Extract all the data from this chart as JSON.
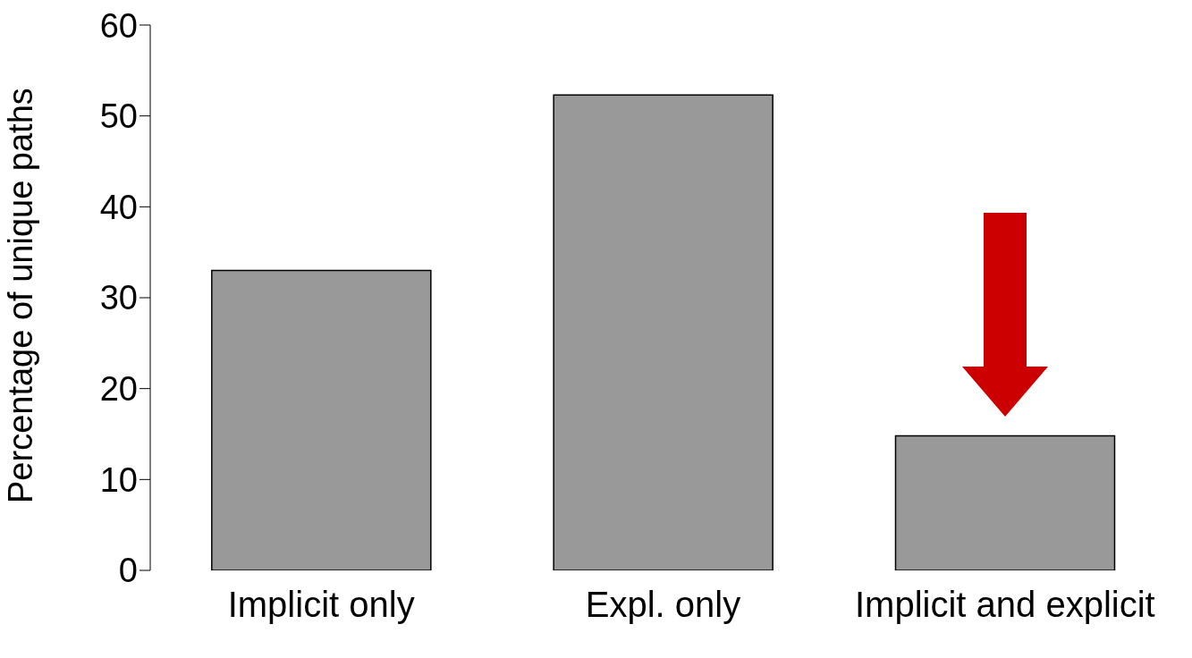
{
  "chart_data": {
    "type": "bar",
    "ylabel": "Percentage of unique paths",
    "categories": [
      "Implicit only",
      "Expl. only",
      "Implicit and explicit"
    ],
    "values": [
      33,
      52.3,
      14.8
    ],
    "color": "#999999",
    "ylim": [
      0,
      60
    ],
    "yticks": [
      0,
      10,
      20,
      30,
      40,
      50,
      60
    ]
  }
}
